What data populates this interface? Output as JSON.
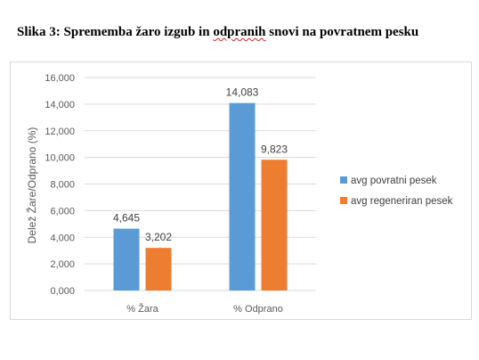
{
  "caption": {
    "prefix": "Slika 3: Sprememba žaro izgub in ",
    "underlined": "odpranih",
    "suffix": " snovi na povratnem pesku"
  },
  "chart_data": {
    "type": "bar",
    "categories": [
      "% Žara",
      "% Odprano"
    ],
    "series": [
      {
        "name": "avg povratni pesek",
        "values": [
          4.645,
          14.083
        ],
        "labels": [
          "4,645",
          "14,083"
        ],
        "color": "#5b9bd5"
      },
      {
        "name": "avg regeneriran pesek",
        "values": [
          3.202,
          9.823
        ],
        "labels": [
          "3,202",
          "9,823"
        ],
        "color": "#ed7d31"
      }
    ],
    "title": "",
    "xlabel": "",
    "ylabel": "Delež Žare/Odprano (%)",
    "ylim": [
      0,
      16
    ],
    "yticks": [
      0,
      2,
      4,
      6,
      8,
      10,
      12,
      14,
      16
    ],
    "ytick_labels": [
      "0,000",
      "2,000",
      "4,000",
      "6,000",
      "8,000",
      "10,000",
      "12,000",
      "14,000",
      "16,000"
    ],
    "grid": true,
    "legend": "right"
  }
}
